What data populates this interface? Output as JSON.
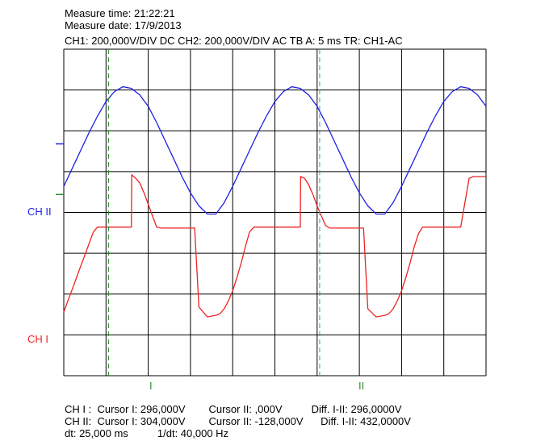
{
  "header": {
    "measure_time": "Measure time: 21:22:21",
    "measure_date": "Measure date: 17/9/2013",
    "settings": "CH1: 200,000V/DIV DC  CH2: 200,000V/DIV AC   TB A: 5 ms   TR: CH1-AC"
  },
  "labels": {
    "ch2": "CH II",
    "ch1": "CH I",
    "cursor1": "I",
    "cursor2": "II"
  },
  "readout": {
    "row1": "CH I :  Cursor I: 296,000V        Cursor II: ,000V          Diff. I-II: 296,0000V",
    "row2": "CH II:  Cursor I: 304,000V        Cursor II: -128,000V      Diff. I-II: 432,0000V",
    "row3": "dt: 25,000 ms          1/dt: 40,000 Hz"
  },
  "colors": {
    "ch2": "#1f1fe6",
    "ch1": "#ee2222",
    "cursor1": "#2e8b2e",
    "cursor2": "#3aa0a8"
  },
  "chart_data": {
    "type": "line",
    "x_unit": "ms",
    "xlim": [
      0,
      50
    ],
    "ylim": [
      -5,
      5
    ],
    "y_unit": "div",
    "timebase_ms_per_div": 5,
    "grid": true,
    "series": [
      {
        "name": "CH II",
        "note": "sine, period 20 ms, peak at x=2.1 ms",
        "x": [
          0,
          1,
          2,
          3,
          4,
          5,
          6,
          7,
          8,
          9,
          10,
          11,
          12,
          13,
          14,
          15,
          16,
          17,
          18,
          19,
          20,
          21,
          22,
          23,
          24,
          25,
          26,
          27,
          28,
          29,
          30,
          31,
          32,
          33,
          34,
          35,
          36,
          37,
          38,
          39,
          40,
          41,
          42,
          43,
          44,
          45,
          46,
          47,
          48,
          49,
          50
        ],
        "y": [
          0.8,
          1.35,
          1.9,
          2.45,
          2.95,
          3.4,
          3.7,
          3.85,
          3.8,
          3.6,
          3.25,
          2.75,
          2.2,
          1.65,
          1.1,
          0.6,
          0.2,
          -0.05,
          -0.05,
          0.3,
          0.8,
          1.35,
          1.9,
          2.45,
          2.95,
          3.4,
          3.7,
          3.85,
          3.8,
          3.6,
          3.25,
          2.75,
          2.2,
          1.65,
          1.1,
          0.6,
          0.2,
          -0.05,
          -0.05,
          0.3,
          0.8,
          1.35,
          1.9,
          2.45,
          2.95,
          3.4,
          3.7,
          3.85,
          3.8,
          3.6,
          3.25
        ]
      },
      {
        "name": "CH I",
        "x": [
          0,
          0.5,
          1,
          1.5,
          2,
          2.5,
          3,
          3.5,
          4,
          4.05,
          5,
          6,
          7,
          8,
          8.05,
          8.5,
          9,
          9.5,
          10,
          10.5,
          11,
          11.5,
          12,
          12.5,
          13,
          13.5,
          14,
          14.5,
          15,
          15.5,
          16,
          17,
          18,
          18.05,
          18.5,
          19,
          19.5,
          20,
          20.5,
          21,
          21.5,
          22,
          22.5,
          23,
          23.5,
          24,
          24.05,
          25,
          26,
          27,
          28,
          28.05,
          28.5,
          29,
          29.5,
          30,
          30.5,
          31,
          31.5,
          32,
          32.5,
          33,
          33.5,
          34,
          34.5,
          35,
          35.5,
          36,
          37,
          38,
          38.05,
          38.5,
          39,
          39.5,
          40,
          40.5,
          41,
          41.5,
          42,
          42.5,
          43,
          43.5,
          44,
          44.05,
          45,
          46,
          47,
          48,
          48.05,
          48.5,
          49,
          50
        ],
        "y": [
          -3.05,
          -2.7,
          -2.35,
          -2.0,
          -1.65,
          -1.3,
          -0.95,
          -0.6,
          -0.45,
          -0.45,
          -0.45,
          -0.45,
          -0.45,
          -0.45,
          1.15,
          1.05,
          0.9,
          0.6,
          0.25,
          -0.1,
          -0.45,
          -0.48,
          -0.48,
          -0.48,
          -0.48,
          -0.48,
          -0.48,
          -0.48,
          -0.48,
          -0.48,
          -2.9,
          -3.2,
          -3.15,
          -3.15,
          -3.1,
          -2.95,
          -2.7,
          -2.4,
          -2.0,
          -1.55,
          -1.05,
          -0.6,
          -0.45,
          -0.45,
          -0.45,
          -0.45,
          -0.45,
          -0.45,
          -0.45,
          -0.45,
          -0.45,
          1.1,
          1.05,
          0.85,
          0.55,
          0.2,
          -0.1,
          -0.4,
          -0.48,
          -0.48,
          -0.48,
          -0.48,
          -0.48,
          -0.48,
          -0.48,
          -0.48,
          -0.48,
          -2.95,
          -3.2,
          -3.15,
          -3.15,
          -3.1,
          -2.95,
          -2.7,
          -2.4,
          -2.0,
          -1.55,
          -1.05,
          -0.65,
          -0.45,
          -0.45,
          -0.45,
          -0.45,
          -0.45,
          -0.45,
          -0.45,
          -0.45,
          1.05,
          1.05,
          1.1,
          1.1,
          1.1
        ],
        "segment_breaks_note": "vertical transitions preserved by duplicated x points"
      }
    ],
    "cursors": [
      {
        "label": "I",
        "x_ms": 5.3
      },
      {
        "label": "II",
        "x_ms": 30.3
      }
    ]
  }
}
